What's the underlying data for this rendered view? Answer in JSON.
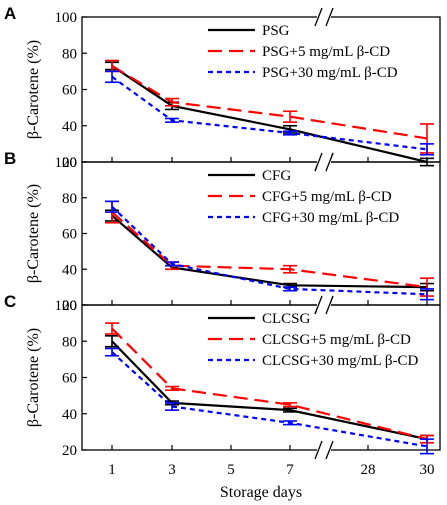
{
  "figure": {
    "xlabel": "Storage days",
    "x_ticks": [
      "1",
      "3",
      "5",
      "7",
      "28",
      "30"
    ]
  },
  "chart_data": [
    {
      "type": "line",
      "panel": "A",
      "ylabel": "β-Carotene (%)",
      "ylim": [
        20,
        100
      ],
      "y_ticks": [
        "20",
        "40",
        "60",
        "80",
        "100"
      ],
      "x": [
        1,
        3,
        7,
        30
      ],
      "x_ticks": [
        "1",
        "3",
        "5",
        "7",
        "28",
        "30"
      ],
      "x_axis_break": "between 7 and 28",
      "legend_position": "top-right",
      "series": [
        {
          "name": "PSG",
          "color": "#000000",
          "style": "solid",
          "values": [
            73,
            51,
            38,
            20
          ],
          "errors": [
            2,
            2,
            2,
            2
          ]
        },
        {
          "name": "PSG+5 mg/mL β-CD",
          "color": "#ff0000",
          "style": "dashed",
          "values": [
            73,
            53,
            45,
            33
          ],
          "errors": [
            3,
            2,
            3,
            8
          ]
        },
        {
          "name": "PSG+30 mg/mL β-CD",
          "color": "#0000ff",
          "style": "dotted",
          "values": [
            67,
            43,
            36,
            27
          ],
          "errors": [
            3,
            1,
            1,
            3
          ]
        }
      ]
    },
    {
      "type": "line",
      "panel": "B",
      "ylabel": "β-Carotene (%)",
      "ylim": [
        20,
        100
      ],
      "y_ticks": [
        "20",
        "40",
        "60",
        "80",
        "100"
      ],
      "x": [
        1,
        3,
        7,
        30
      ],
      "x_ticks": [
        "1",
        "3",
        "5",
        "7",
        "28",
        "30"
      ],
      "x_axis_break": "between 7 and 28",
      "legend_position": "top-right",
      "series": [
        {
          "name": "CFG",
          "color": "#000000",
          "style": "solid",
          "values": [
            70,
            41,
            31,
            30
          ],
          "errors": [
            3,
            1,
            1,
            2
          ]
        },
        {
          "name": "CFG+5 mg/mL β-CD",
          "color": "#ff0000",
          "style": "dashed",
          "values": [
            72,
            42,
            40,
            30
          ],
          "errors": [
            6,
            2,
            2,
            5
          ]
        },
        {
          "name": "CFG+30 mg/mL β-CD",
          "color": "#0000ff",
          "style": "dotted",
          "values": [
            75,
            43,
            29,
            26
          ],
          "errors": [
            3,
            1,
            1,
            3
          ]
        }
      ]
    },
    {
      "type": "line",
      "panel": "C",
      "ylabel": "β-Carotene (%)",
      "ylim": [
        20,
        100
      ],
      "y_ticks": [
        "20",
        "40",
        "60",
        "80",
        "100"
      ],
      "x": [
        1,
        3,
        7,
        30
      ],
      "x_ticks": [
        "1",
        "3",
        "5",
        "7",
        "28",
        "30"
      ],
      "x_axis_break": "between 7 and 28",
      "legend_position": "top-right",
      "series": [
        {
          "name": "CLCSG",
          "color": "#000000",
          "style": "solid",
          "values": [
            80,
            46,
            42,
            26
          ],
          "errors": [
            3,
            1,
            1,
            2
          ]
        },
        {
          "name": "CLCSG+5 mg/mL β-CD",
          "color": "#ff0000",
          "style": "dashed",
          "values": [
            87,
            54,
            45,
            26
          ],
          "errors": [
            3,
            1,
            1,
            2
          ]
        },
        {
          "name": "CLCSG+30 mg/mL β-CD",
          "color": "#0000ff",
          "style": "dotted",
          "values": [
            74,
            44,
            35,
            22
          ],
          "errors": [
            2,
            2,
            1,
            4
          ]
        }
      ]
    }
  ]
}
